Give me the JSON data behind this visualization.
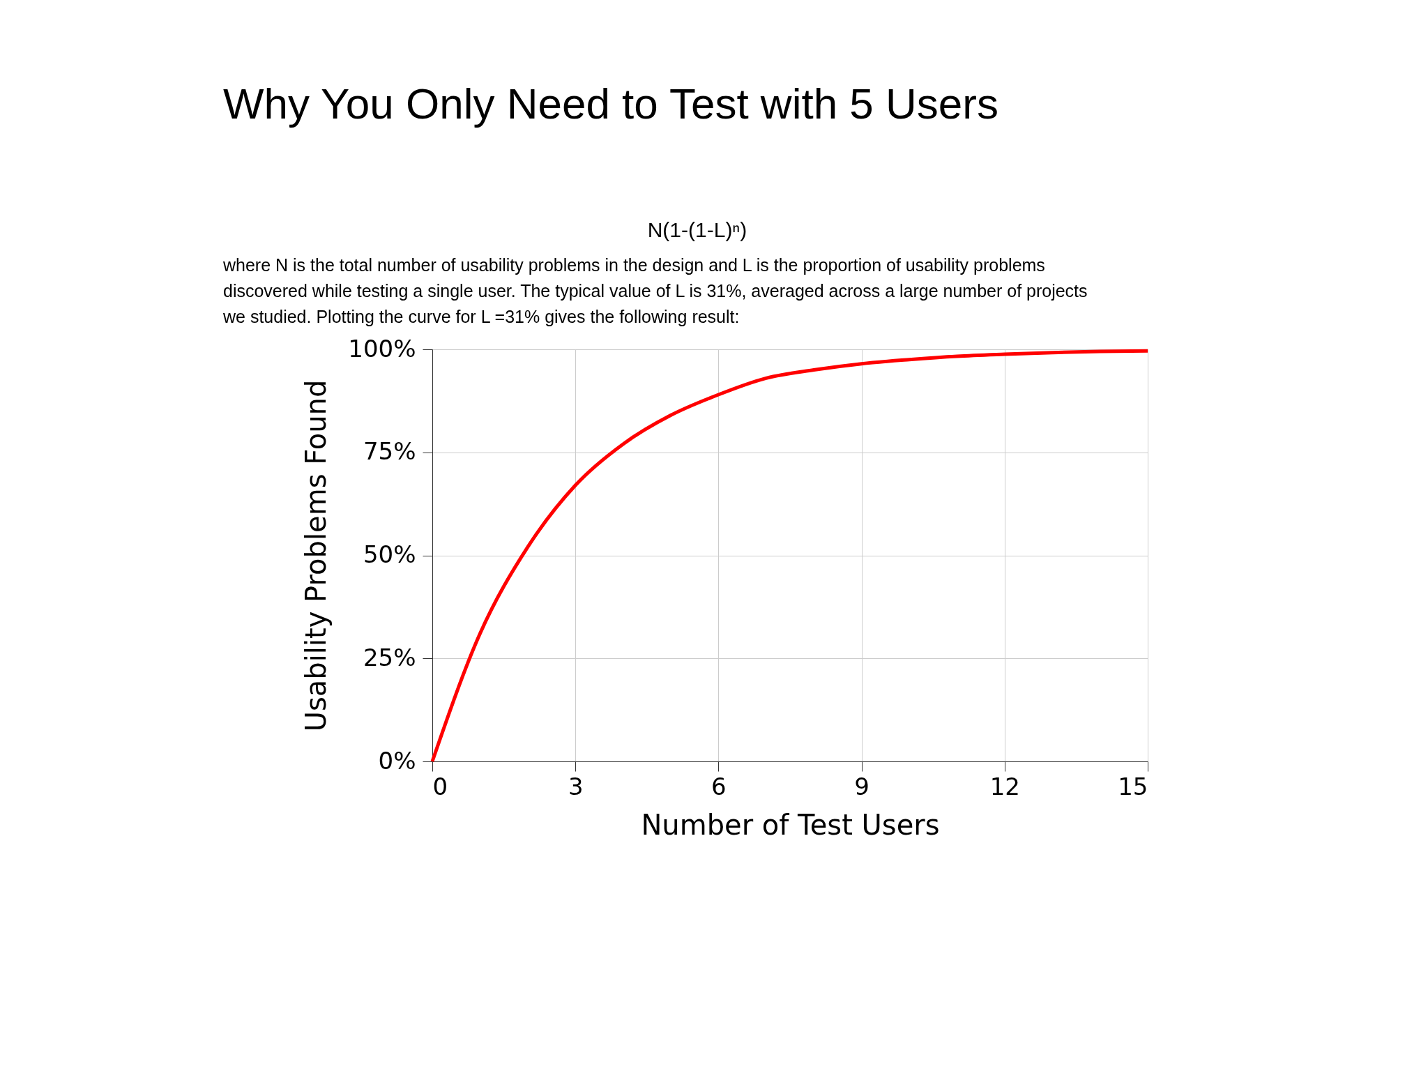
{
  "chart_data": {
    "type": "line",
    "title": "Why You Only Need to Test with 5 Users",
    "subtitle": "N(1-(1-L)ⁿ)",
    "annotations": [
      "where N is the total number of usability problems in the design and L is the proportion of usability problems discovered while testing a single user. The typical value of L is 31%, averaged across a large number of projects we studied. Plotting the curve for L =31% gives the following result:"
    ],
    "xlabel": "Number of Test Users",
    "ylabel": "Usability Problems Found",
    "x": [
      0,
      1,
      2,
      3,
      4,
      5,
      6,
      7,
      8,
      9,
      10,
      11,
      12,
      13,
      14,
      15
    ],
    "series": [
      {
        "color": "#ff0000",
        "values": [
          0,
          31,
          52,
          67,
          77,
          84,
          89,
          93,
          95,
          96.5,
          97.5,
          98.3,
          98.8,
          99.2,
          99.5,
          99.6
        ]
      }
    ],
    "xlim": [
      0,
      15
    ],
    "xticks": [
      0,
      3,
      6,
      9,
      12,
      15
    ],
    "ylim": [
      0,
      100
    ],
    "yticks": [
      {
        "value": 0,
        "label": "0%"
      },
      {
        "value": 25,
        "label": "25%"
      },
      {
        "value": 50,
        "label": "50%"
      },
      {
        "value": 75,
        "label": "75%"
      },
      {
        "value": 100,
        "label": "100%"
      }
    ],
    "grid": true,
    "marker": "none",
    "line_style": "solid"
  }
}
